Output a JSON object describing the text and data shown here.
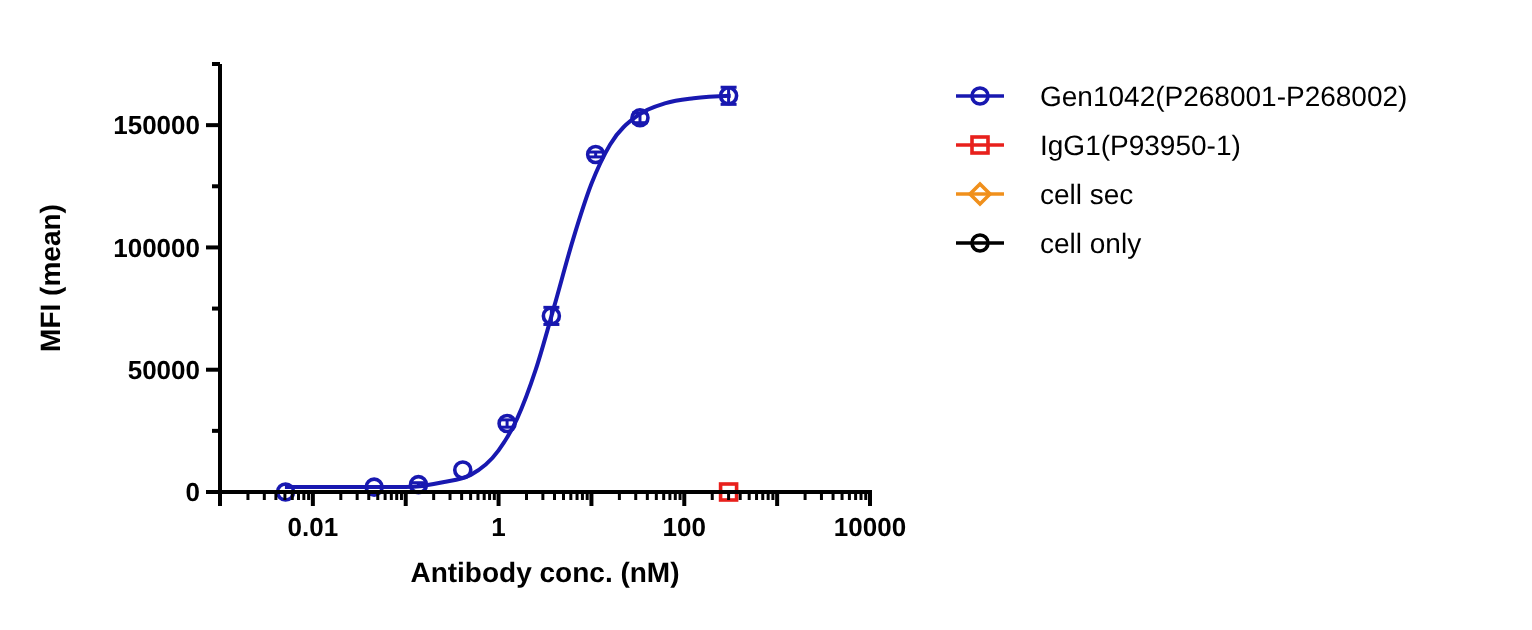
{
  "chart_data": {
    "type": "scatter",
    "xlabel": "Antibody conc. (nM)",
    "ylabel": "MFI (mean)",
    "log": "x",
    "xlim": [
      0.001,
      10000
    ],
    "ylim": [
      0,
      175000
    ],
    "xticks": [
      {
        "value": 0.001,
        "label": null
      },
      0.01,
      {
        "value": 0.1,
        "label": null
      },
      1,
      {
        "value": 10,
        "label": null
      },
      100,
      {
        "value": 1000,
        "label": null
      },
      10000
    ],
    "yticks": [
      0,
      {
        "value": 25000,
        "label": null
      },
      50000,
      {
        "value": 75000,
        "label": null
      },
      100000,
      {
        "value": 125000,
        "label": null
      },
      150000,
      {
        "value": 175000,
        "label": null
      }
    ],
    "grid": false,
    "legend": "right",
    "series": [
      {
        "name": "Gen1042(P268001-P268002)",
        "color": "#1818b0",
        "marker": "circle",
        "x": [
          0.005081,
          0.04572,
          0.1372,
          0.4115,
          1.235,
          3.704,
          11.11,
          33.33,
          300
        ],
        "values": [
          0,
          2000,
          3000,
          9000,
          28000,
          72000,
          138000,
          153000,
          162000
        ],
        "errors": [
          null,
          null,
          800,
          null,
          1500,
          3500,
          1000,
          2000,
          3500
        ]
      },
      {
        "type": "line",
        "color": "#1818b0",
        "marker": "none",
        "x": [
          0.005,
          0.0316,
          0.1,
          0.251,
          0.501,
          1,
          1.585,
          2.512,
          3.981,
          6.31,
          10,
          15.85,
          31.62,
          63.1,
          125.9,
          316.2
        ],
        "values": [
          2000,
          2000,
          2000,
          4000,
          7000,
          17000,
          30000,
          50000,
          76000,
          103000,
          126000,
          142000,
          154000,
          159000,
          161000,
          162000
        ]
      },
      {
        "name": "IgG1(P93950-1)",
        "color": "#e8201c",
        "marker": "square",
        "x": [
          300
        ],
        "values": [
          0
        ]
      },
      {
        "name": "cell sec",
        "color": "#f0901c",
        "marker": "diamond"
      },
      {
        "name": "cell only",
        "color": "#000000",
        "marker": "circle"
      }
    ]
  }
}
